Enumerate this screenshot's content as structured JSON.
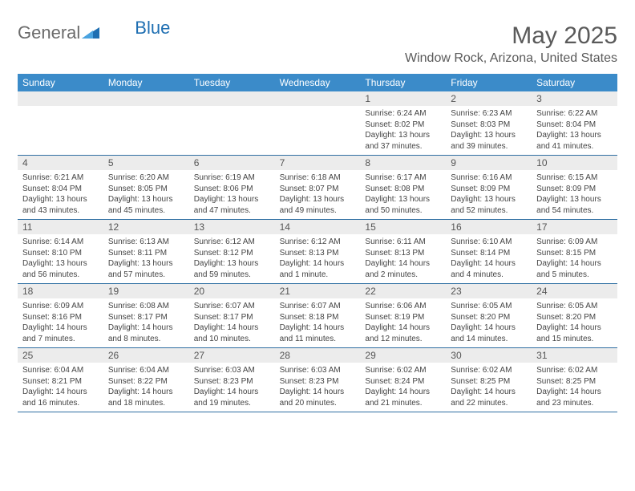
{
  "brand": {
    "word1": "General",
    "word2": "Blue"
  },
  "colors": {
    "header_bg": "#3b8bc9",
    "header_text": "#ffffff",
    "stripe_bg": "#ececec",
    "border": "#2f6fa3",
    "title_color": "#5a5a5a",
    "body_text": "#444444",
    "logo_gray": "#6b6b6b",
    "logo_blue": "#1f6fb2"
  },
  "title": "May 2025",
  "location": "Window Rock, Arizona, United States",
  "day_names": [
    "Sunday",
    "Monday",
    "Tuesday",
    "Wednesday",
    "Thursday",
    "Friday",
    "Saturday"
  ],
  "weeks": [
    [
      {
        "n": "",
        "sunrise": "",
        "sunset": "",
        "daylight": ""
      },
      {
        "n": "",
        "sunrise": "",
        "sunset": "",
        "daylight": ""
      },
      {
        "n": "",
        "sunrise": "",
        "sunset": "",
        "daylight": ""
      },
      {
        "n": "",
        "sunrise": "",
        "sunset": "",
        "daylight": ""
      },
      {
        "n": "1",
        "sunrise": "Sunrise: 6:24 AM",
        "sunset": "Sunset: 8:02 PM",
        "daylight": "Daylight: 13 hours and 37 minutes."
      },
      {
        "n": "2",
        "sunrise": "Sunrise: 6:23 AM",
        "sunset": "Sunset: 8:03 PM",
        "daylight": "Daylight: 13 hours and 39 minutes."
      },
      {
        "n": "3",
        "sunrise": "Sunrise: 6:22 AM",
        "sunset": "Sunset: 8:04 PM",
        "daylight": "Daylight: 13 hours and 41 minutes."
      }
    ],
    [
      {
        "n": "4",
        "sunrise": "Sunrise: 6:21 AM",
        "sunset": "Sunset: 8:04 PM",
        "daylight": "Daylight: 13 hours and 43 minutes."
      },
      {
        "n": "5",
        "sunrise": "Sunrise: 6:20 AM",
        "sunset": "Sunset: 8:05 PM",
        "daylight": "Daylight: 13 hours and 45 minutes."
      },
      {
        "n": "6",
        "sunrise": "Sunrise: 6:19 AM",
        "sunset": "Sunset: 8:06 PM",
        "daylight": "Daylight: 13 hours and 47 minutes."
      },
      {
        "n": "7",
        "sunrise": "Sunrise: 6:18 AM",
        "sunset": "Sunset: 8:07 PM",
        "daylight": "Daylight: 13 hours and 49 minutes."
      },
      {
        "n": "8",
        "sunrise": "Sunrise: 6:17 AM",
        "sunset": "Sunset: 8:08 PM",
        "daylight": "Daylight: 13 hours and 50 minutes."
      },
      {
        "n": "9",
        "sunrise": "Sunrise: 6:16 AM",
        "sunset": "Sunset: 8:09 PM",
        "daylight": "Daylight: 13 hours and 52 minutes."
      },
      {
        "n": "10",
        "sunrise": "Sunrise: 6:15 AM",
        "sunset": "Sunset: 8:09 PM",
        "daylight": "Daylight: 13 hours and 54 minutes."
      }
    ],
    [
      {
        "n": "11",
        "sunrise": "Sunrise: 6:14 AM",
        "sunset": "Sunset: 8:10 PM",
        "daylight": "Daylight: 13 hours and 56 minutes."
      },
      {
        "n": "12",
        "sunrise": "Sunrise: 6:13 AM",
        "sunset": "Sunset: 8:11 PM",
        "daylight": "Daylight: 13 hours and 57 minutes."
      },
      {
        "n": "13",
        "sunrise": "Sunrise: 6:12 AM",
        "sunset": "Sunset: 8:12 PM",
        "daylight": "Daylight: 13 hours and 59 minutes."
      },
      {
        "n": "14",
        "sunrise": "Sunrise: 6:12 AM",
        "sunset": "Sunset: 8:13 PM",
        "daylight": "Daylight: 14 hours and 1 minute."
      },
      {
        "n": "15",
        "sunrise": "Sunrise: 6:11 AM",
        "sunset": "Sunset: 8:13 PM",
        "daylight": "Daylight: 14 hours and 2 minutes."
      },
      {
        "n": "16",
        "sunrise": "Sunrise: 6:10 AM",
        "sunset": "Sunset: 8:14 PM",
        "daylight": "Daylight: 14 hours and 4 minutes."
      },
      {
        "n": "17",
        "sunrise": "Sunrise: 6:09 AM",
        "sunset": "Sunset: 8:15 PM",
        "daylight": "Daylight: 14 hours and 5 minutes."
      }
    ],
    [
      {
        "n": "18",
        "sunrise": "Sunrise: 6:09 AM",
        "sunset": "Sunset: 8:16 PM",
        "daylight": "Daylight: 14 hours and 7 minutes."
      },
      {
        "n": "19",
        "sunrise": "Sunrise: 6:08 AM",
        "sunset": "Sunset: 8:17 PM",
        "daylight": "Daylight: 14 hours and 8 minutes."
      },
      {
        "n": "20",
        "sunrise": "Sunrise: 6:07 AM",
        "sunset": "Sunset: 8:17 PM",
        "daylight": "Daylight: 14 hours and 10 minutes."
      },
      {
        "n": "21",
        "sunrise": "Sunrise: 6:07 AM",
        "sunset": "Sunset: 8:18 PM",
        "daylight": "Daylight: 14 hours and 11 minutes."
      },
      {
        "n": "22",
        "sunrise": "Sunrise: 6:06 AM",
        "sunset": "Sunset: 8:19 PM",
        "daylight": "Daylight: 14 hours and 12 minutes."
      },
      {
        "n": "23",
        "sunrise": "Sunrise: 6:05 AM",
        "sunset": "Sunset: 8:20 PM",
        "daylight": "Daylight: 14 hours and 14 minutes."
      },
      {
        "n": "24",
        "sunrise": "Sunrise: 6:05 AM",
        "sunset": "Sunset: 8:20 PM",
        "daylight": "Daylight: 14 hours and 15 minutes."
      }
    ],
    [
      {
        "n": "25",
        "sunrise": "Sunrise: 6:04 AM",
        "sunset": "Sunset: 8:21 PM",
        "daylight": "Daylight: 14 hours and 16 minutes."
      },
      {
        "n": "26",
        "sunrise": "Sunrise: 6:04 AM",
        "sunset": "Sunset: 8:22 PM",
        "daylight": "Daylight: 14 hours and 18 minutes."
      },
      {
        "n": "27",
        "sunrise": "Sunrise: 6:03 AM",
        "sunset": "Sunset: 8:23 PM",
        "daylight": "Daylight: 14 hours and 19 minutes."
      },
      {
        "n": "28",
        "sunrise": "Sunrise: 6:03 AM",
        "sunset": "Sunset: 8:23 PM",
        "daylight": "Daylight: 14 hours and 20 minutes."
      },
      {
        "n": "29",
        "sunrise": "Sunrise: 6:02 AM",
        "sunset": "Sunset: 8:24 PM",
        "daylight": "Daylight: 14 hours and 21 minutes."
      },
      {
        "n": "30",
        "sunrise": "Sunrise: 6:02 AM",
        "sunset": "Sunset: 8:25 PM",
        "daylight": "Daylight: 14 hours and 22 minutes."
      },
      {
        "n": "31",
        "sunrise": "Sunrise: 6:02 AM",
        "sunset": "Sunset: 8:25 PM",
        "daylight": "Daylight: 14 hours and 23 minutes."
      }
    ]
  ]
}
